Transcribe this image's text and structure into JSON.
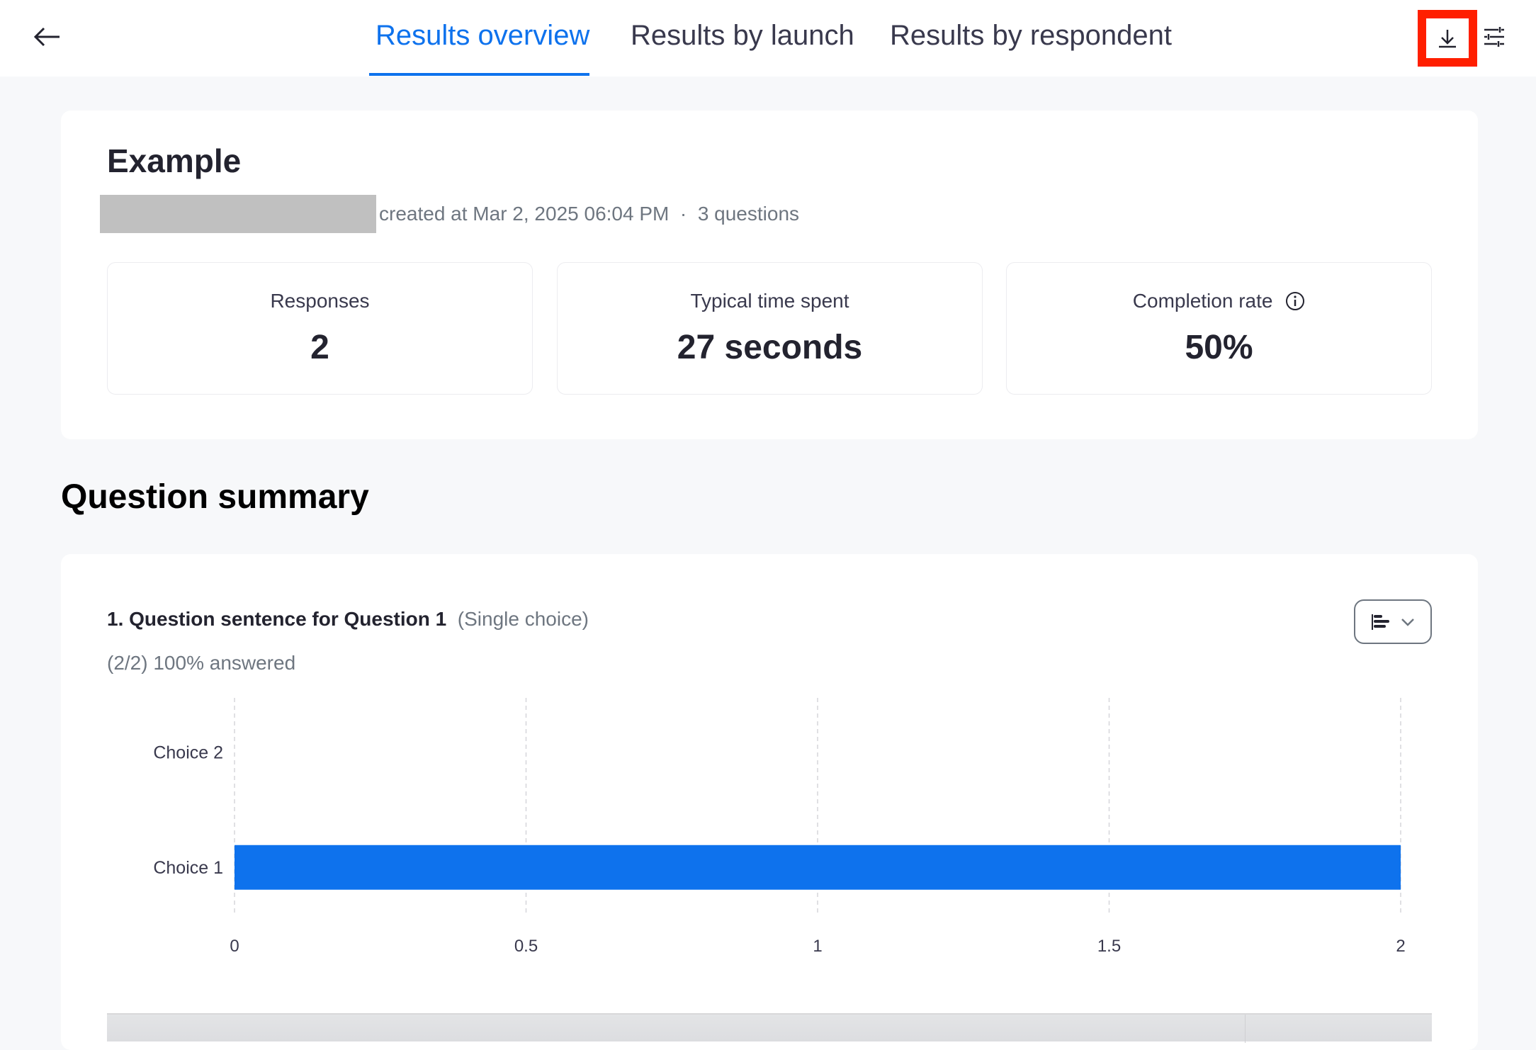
{
  "header": {
    "tabs": [
      {
        "label": "Results overview",
        "active": true
      },
      {
        "label": "Results by launch",
        "active": false
      },
      {
        "label": "Results by respondent",
        "active": false
      }
    ],
    "icons": [
      "back-arrow-icon",
      "download-icon",
      "settings-sliders-icon"
    ],
    "accent": "#0e72ed",
    "highlight_color": "#ff1f00"
  },
  "overview": {
    "title": "Example",
    "meta": "created at Mar 2, 2025 06:04 PM",
    "separator": "·",
    "questions": "3 questions",
    "stats": [
      {
        "label": "Responses",
        "value": "2"
      },
      {
        "label": "Typical time spent",
        "value": "27 seconds"
      },
      {
        "label": "Completion rate",
        "value": "50%",
        "icon": "info-icon"
      }
    ]
  },
  "summary": {
    "heading": "Question summary",
    "question": {
      "title": "1. Question sentence for Question 1",
      "type": "(Single choice)",
      "answered": "(2/2) 100% answered"
    }
  },
  "chart_data": {
    "type": "bar",
    "orientation": "horizontal",
    "categories": [
      "Choice 2",
      "Choice 1"
    ],
    "values": [
      0,
      2
    ],
    "xlim": [
      0,
      2
    ],
    "xticks": [
      "0",
      "0.5",
      "1",
      "1.5",
      "2"
    ],
    "grid": true,
    "bar_color": "#0e72ed"
  }
}
